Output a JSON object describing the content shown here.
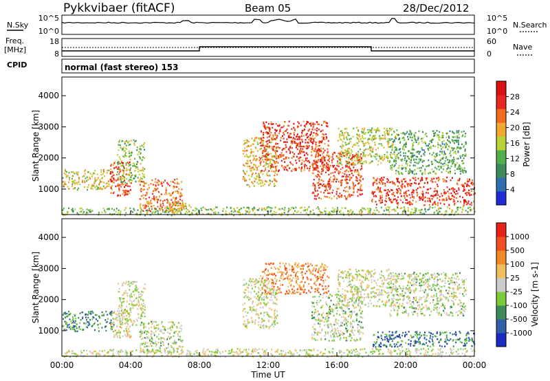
{
  "header": {
    "station": "Pykkvibaer (fitACF)",
    "beam": "Beam 05",
    "date": "28/Dec/2012"
  },
  "noise_panel": {
    "left_label": "N.Sky",
    "right_label": "N.Search",
    "left_ticks": [
      "10^5",
      "10^0"
    ],
    "right_ticks": [
      "10^5",
      "10^0"
    ]
  },
  "freq_panel": {
    "left_label_line1": "Freq.",
    "left_label_line2": "[MHz]",
    "right_label": "Nave",
    "left_ticks": [
      "18",
      "8"
    ],
    "right_ticks": [
      "60",
      "0"
    ]
  },
  "cpid": {
    "label": "CPID",
    "text": "normal (fast stereo) 153"
  },
  "x_axis": {
    "label": "Time UT",
    "ticks": [
      "00:00",
      "04:00",
      "08:00",
      "12:00",
      "16:00",
      "20:00",
      "00:00"
    ]
  },
  "chart_data": [
    {
      "type": "heatmap",
      "quantity": "Power",
      "y_axis_label": "Slant Range [km]",
      "y_ticks": [
        1000,
        2000,
        3000,
        4000
      ],
      "ylim": [
        180,
        4600
      ],
      "xlim_hours": [
        0,
        24
      ],
      "colorbar": {
        "label": "Power [dB]",
        "ticks": [
          "4",
          "8",
          "12",
          "16",
          "20",
          "24",
          "28"
        ],
        "colors": [
          "#1f2bd6",
          "#2f6fb0",
          "#3d8a5a",
          "#52b04a",
          "#b8d23a",
          "#f0a830",
          "#f06a20",
          "#e8281e",
          "#d81010"
        ]
      },
      "regions": [
        {
          "t": [
            0.0,
            3.0
          ],
          "r": [
            1000,
            1650
          ],
          "level": 0.55
        },
        {
          "t": [
            2.8,
            4.0
          ],
          "r": [
            800,
            1900
          ],
          "level": 0.85
        },
        {
          "t": [
            3.2,
            4.8
          ],
          "r": [
            1200,
            2600
          ],
          "level": 0.45
        },
        {
          "t": [
            4.5,
            7.0
          ],
          "r": [
            300,
            1350
          ],
          "level": 0.75
        },
        {
          "t": [
            6.0,
            7.5
          ],
          "r": [
            200,
            600
          ],
          "level": 0.6
        },
        {
          "t": [
            0.0,
            8.0
          ],
          "r": [
            180,
            420
          ],
          "level": 0.4
        },
        {
          "t": [
            10.5,
            12.5
          ],
          "r": [
            1100,
            2700
          ],
          "level": 0.6
        },
        {
          "t": [
            11.5,
            15.5
          ],
          "r": [
            1600,
            3200
          ],
          "level": 0.85
        },
        {
          "t": [
            14.5,
            17.5
          ],
          "r": [
            700,
            2200
          ],
          "level": 0.8
        },
        {
          "t": [
            16.0,
            19.5
          ],
          "r": [
            1800,
            3000
          ],
          "level": 0.5
        },
        {
          "t": [
            18.0,
            24.0
          ],
          "r": [
            500,
            1400
          ],
          "level": 0.85
        },
        {
          "t": [
            19.0,
            23.5
          ],
          "r": [
            1500,
            2900
          ],
          "level": 0.35
        },
        {
          "t": [
            8.0,
            24.0
          ],
          "r": [
            180,
            450
          ],
          "level": 0.45
        }
      ]
    },
    {
      "type": "heatmap",
      "quantity": "Velocity",
      "y_axis_label": "Slant Range [km]",
      "y_ticks": [
        1000,
        2000,
        3000,
        4000
      ],
      "ylim": [
        180,
        4600
      ],
      "xlim_hours": [
        0,
        24
      ],
      "colorbar": {
        "label": "Velocity [m s-1]",
        "ticks": [
          "1000",
          "500",
          "100",
          "25",
          "-25",
          "-100",
          "-500",
          "-1000"
        ],
        "colors": [
          "#1a2cc2",
          "#2f5fa8",
          "#3d8a5a",
          "#7acc3a",
          "#cccccc",
          "#f0c060",
          "#f08a28",
          "#f05020",
          "#e82218"
        ]
      },
      "regions": [
        {
          "t": [
            0.0,
            3.0
          ],
          "r": [
            1000,
            1650
          ],
          "level": 0.25
        },
        {
          "t": [
            2.8,
            4.0
          ],
          "r": [
            800,
            1700
          ],
          "level": 0.55
        },
        {
          "t": [
            3.2,
            4.8
          ],
          "r": [
            1200,
            2600
          ],
          "level": 0.5
        },
        {
          "t": [
            4.5,
            7.0
          ],
          "r": [
            300,
            1350
          ],
          "level": 0.45
        },
        {
          "t": [
            0.0,
            8.0
          ],
          "r": [
            180,
            420
          ],
          "level": 0.5
        },
        {
          "t": [
            10.5,
            12.5
          ],
          "r": [
            1100,
            2700
          ],
          "level": 0.5
        },
        {
          "t": [
            11.5,
            15.5
          ],
          "r": [
            2200,
            3200
          ],
          "level": 0.75
        },
        {
          "t": [
            14.5,
            17.5
          ],
          "r": [
            700,
            2200
          ],
          "level": 0.45
        },
        {
          "t": [
            16.0,
            19.5
          ],
          "r": [
            1800,
            3000
          ],
          "level": 0.5
        },
        {
          "t": [
            18.0,
            24.0
          ],
          "r": [
            500,
            1000
          ],
          "level": 0.2
        },
        {
          "t": [
            19.0,
            23.5
          ],
          "r": [
            1500,
            2900
          ],
          "level": 0.45
        },
        {
          "t": [
            8.0,
            24.0
          ],
          "r": [
            180,
            450
          ],
          "level": 0.5
        }
      ]
    }
  ]
}
